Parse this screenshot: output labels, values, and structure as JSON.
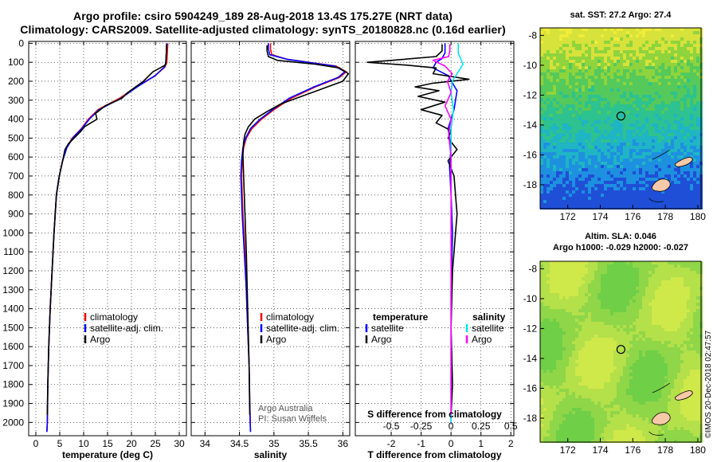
{
  "header": {
    "line1": "Argo profile: csiro 5904249_189 28-Aug-2018 13.4S 175.27E (NRT data)",
    "line2": "Climatology: CARS2009. Satellite-adjusted climatology: synTS_20180828.nc (0.16d earlier)"
  },
  "credit": {
    "line1": "Argo Australia",
    "line2": "PI: Susan Wijffels"
  },
  "watermark": "©IMOS 20-Dec-2018 02:47:57",
  "colors": {
    "climatology": "#ff0000",
    "satellite": "#0000ff",
    "argo": "#000000",
    "sat_salinity": "#00e5ee",
    "argo_salinity": "#ff00ff"
  },
  "depth_ticks": [
    "0",
    "100",
    "200",
    "300",
    "400",
    "500",
    "600",
    "700",
    "800",
    "900",
    "1000",
    "1100",
    "1200",
    "1300",
    "1400",
    "1500",
    "1600",
    "1700",
    "1800",
    "1900",
    "2000"
  ],
  "chart_data": [
    {
      "type": "line",
      "name": "temperature-panel",
      "xlabel": "temperature (deg C)",
      "xlim": [
        -1.5,
        31.5
      ],
      "ylim": [
        2070,
        -10
      ],
      "xticks": [
        "0",
        "5",
        "10",
        "15",
        "20",
        "25",
        "30"
      ],
      "xtick_values": [
        0,
        5,
        10,
        15,
        20,
        25,
        30
      ],
      "legend": [
        "climatology",
        "satellite-adj. clim.",
        "Argo"
      ],
      "series": [
        {
          "name": "climatology",
          "color": "#ff0000",
          "x": [
            27.6,
            27.5,
            27.4,
            27.0,
            25.0,
            21.0,
            17.5,
            13.0,
            11.0,
            9.5,
            7.6,
            6.4,
            5.6,
            4.9,
            4.3,
            3.8,
            3.4,
            3.0,
            2.7,
            2.5,
            2.4,
            2.3
          ],
          "y": [
            0,
            50,
            100,
            125,
            170,
            230,
            290,
            350,
            400,
            450,
            500,
            550,
            620,
            700,
            800,
            1000,
            1200,
            1400,
            1600,
            1800,
            2000,
            2050
          ]
        },
        {
          "name": "satellite-adj. clim.",
          "color": "#0000ff",
          "x": [
            27.4,
            27.3,
            27.2,
            26.9,
            25.0,
            21.2,
            17.8,
            13.2,
            11.2,
            9.6,
            7.7,
            6.5,
            5.6,
            4.9,
            4.3,
            3.8,
            3.4,
            3.0,
            2.7,
            2.5,
            2.4,
            2.3
          ],
          "y": [
            0,
            50,
            100,
            125,
            170,
            230,
            290,
            350,
            400,
            450,
            500,
            550,
            620,
            700,
            800,
            1000,
            1200,
            1400,
            1600,
            1800,
            2000,
            2050
          ]
        },
        {
          "name": "Argo",
          "color": "#000000",
          "x": [
            27.3,
            27.3,
            27.2,
            27.1,
            24.5,
            22.5,
            19.2,
            18.0,
            14.5,
            12.5,
            12.8,
            10.2,
            9.2,
            8.0,
            6.8,
            6.1,
            5.6,
            4.9,
            4.3,
            3.8,
            3.4,
            3.0,
            2.7,
            2.5,
            2.4
          ],
          "y": [
            5,
            50,
            95,
            115,
            150,
            200,
            260,
            290,
            330,
            370,
            400,
            440,
            470,
            500,
            530,
            560,
            620,
            700,
            800,
            1000,
            1200,
            1400,
            1600,
            1800,
            1960
          ]
        }
      ]
    },
    {
      "type": "line",
      "name": "salinity-panel",
      "xlabel": "salinity",
      "xlim": [
        33.8,
        36.1
      ],
      "ylim": [
        2070,
        -10
      ],
      "xticks": [
        "34",
        "34.5",
        "35",
        "35.5",
        "36"
      ],
      "xtick_values": [
        34,
        34.5,
        35,
        35.5,
        36
      ],
      "legend": [
        "climatology",
        "satellite-adj. clim.",
        "Argo"
      ],
      "series": [
        {
          "name": "climatology",
          "color": "#ff0000",
          "x": [
            34.95,
            34.95,
            34.97,
            35.2,
            35.9,
            36.05,
            35.95,
            35.6,
            35.25,
            35.0,
            34.82,
            34.68,
            34.6,
            34.56,
            34.54,
            34.53,
            34.55,
            34.58,
            34.6,
            34.62,
            34.64,
            34.65,
            34.66
          ],
          "y": [
            0,
            30,
            60,
            85,
            120,
            150,
            180,
            230,
            290,
            350,
            400,
            450,
            500,
            550,
            620,
            700,
            900,
            1100,
            1300,
            1500,
            1700,
            1900,
            2050
          ]
        },
        {
          "name": "satellite-adj. clim.",
          "color": "#0000ff",
          "x": [
            34.92,
            34.92,
            34.94,
            35.2,
            35.88,
            36.03,
            35.93,
            35.58,
            35.22,
            34.98,
            34.8,
            34.66,
            34.59,
            34.55,
            34.53,
            34.52,
            34.54,
            34.57,
            34.6,
            34.62,
            34.64,
            34.65,
            34.66
          ],
          "y": [
            0,
            30,
            60,
            85,
            120,
            150,
            180,
            230,
            290,
            350,
            400,
            450,
            500,
            550,
            620,
            700,
            900,
            1100,
            1300,
            1500,
            1700,
            1900,
            2050
          ]
        },
        {
          "name": "Argo",
          "color": "#000000",
          "x": [
            34.9,
            34.9,
            34.92,
            35.05,
            35.6,
            35.95,
            36.08,
            36.0,
            35.7,
            35.4,
            35.1,
            34.9,
            34.72,
            34.63,
            34.58,
            34.56,
            34.55,
            34.56,
            34.58,
            34.6,
            34.62,
            34.64,
            34.65
          ],
          "y": [
            10,
            40,
            70,
            90,
            110,
            130,
            160,
            200,
            240,
            280,
            320,
            360,
            400,
            440,
            480,
            520,
            580,
            700,
            900,
            1100,
            1400,
            1700,
            1960
          ]
        }
      ]
    },
    {
      "type": "line",
      "name": "difference-panel",
      "xlabel": "T difference from climatology",
      "xlabel_top": "S difference from climatology",
      "xlim": [
        -3.2,
        2.1
      ],
      "ylim": [
        2070,
        -10
      ],
      "xticks": [
        "-2",
        "-1",
        "0",
        "1",
        "2"
      ],
      "xtick_values": [
        -2,
        -1,
        0,
        1,
        2
      ],
      "top_ticks": [
        "-0.5",
        "-0.25",
        "0",
        "0.25",
        "0.5"
      ],
      "top_tick_values": [
        -0.5,
        -0.25,
        0,
        0.25,
        0.5
      ],
      "salinity_scale": 4,
      "legend_left": [
        "temperature",
        "satellite",
        "Argo"
      ],
      "legend_right": [
        "salinity",
        "satellite",
        "Argo"
      ],
      "series": [
        {
          "name": "T satellite",
          "color": "#0000ff",
          "x": [
            -0.2,
            -0.2,
            -0.3,
            -0.5,
            -0.6,
            -0.1,
            0.2,
            0.1,
            -0.1,
            0,
            -0.05,
            0,
            0.05,
            0,
            0,
            0
          ],
          "y": [
            0,
            50,
            80,
            100,
            130,
            170,
            250,
            350,
            450,
            550,
            650,
            800,
            1000,
            1300,
            1600,
            2000
          ]
        },
        {
          "name": "T Argo",
          "color": "#000000",
          "x": [
            -0.3,
            -0.3,
            -0.5,
            -2.0,
            -2.8,
            -1.5,
            -0.5,
            -0.6,
            0.6,
            -0.6,
            -1.2,
            -0.4,
            -1.1,
            -0.2,
            -1.0,
            -0.3,
            -0.5,
            0,
            -0.1,
            0.2,
            -0.1,
            0.1,
            0.2,
            0.05,
            0,
            0.05,
            0
          ],
          "y": [
            5,
            40,
            70,
            90,
            100,
            115,
            130,
            160,
            190,
            210,
            230,
            250,
            280,
            310,
            350,
            380,
            420,
            460,
            500,
            560,
            620,
            700,
            900,
            1200,
            1500,
            1800,
            1960
          ]
        },
        {
          "name": "S satellite",
          "color": "#00e5ee",
          "x": [
            0.06,
            0.06,
            0.08,
            0.1,
            0.05,
            0.01,
            0,
            0.02,
            0,
            0,
            0,
            0,
            0,
            0,
            0
          ],
          "y": [
            0,
            50,
            80,
            110,
            160,
            200,
            260,
            350,
            450,
            600,
            800,
            1000,
            1300,
            1600,
            2000
          ]
        },
        {
          "name": "S Argo",
          "color": "#ff00ff",
          "x": [
            -0.01,
            -0.01,
            -0.02,
            -0.15,
            -0.05,
            0.01,
            -0.03,
            0.0,
            -0.05,
            0,
            -0.02,
            0,
            0,
            0
          ],
          "y": [
            5,
            40,
            70,
            90,
            120,
            160,
            200,
            260,
            330,
            400,
            480,
            600,
            900,
            1960
          ]
        }
      ]
    },
    {
      "type": "heatmap",
      "name": "sst-map",
      "title": "sat. SST: 27.2 Argo: 27.4",
      "xticks": [
        "172",
        "174",
        "176",
        "178",
        "180"
      ],
      "xtick_values": [
        172,
        174,
        176,
        178,
        180
      ],
      "yticks": [
        "-8",
        "-10",
        "-12",
        "-14",
        "-16",
        "-18"
      ],
      "ytick_values": [
        -8,
        -10,
        -12,
        -14,
        -16,
        -18
      ],
      "xlim": [
        170.3,
        180.2
      ],
      "ylim": [
        -19.6,
        -7.5
      ],
      "float_position": [
        175.27,
        -13.4
      ]
    },
    {
      "type": "heatmap",
      "name": "sla-map",
      "title_line1": "Altim. SLA: 0.046",
      "title_line2": "Argo h1000: -0.029 h2000: -0.027",
      "xticks": [
        "172",
        "174",
        "176",
        "178",
        "180"
      ],
      "xtick_values": [
        172,
        174,
        176,
        178,
        180
      ],
      "yticks": [
        "-8",
        "-10",
        "-12",
        "-14",
        "-16",
        "-18"
      ],
      "ytick_values": [
        -8,
        -10,
        -12,
        -14,
        -16,
        -18
      ],
      "xlim": [
        170.3,
        180.2
      ],
      "ylim": [
        -19.6,
        -7.5
      ],
      "float_position": [
        175.27,
        -13.4
      ]
    }
  ]
}
